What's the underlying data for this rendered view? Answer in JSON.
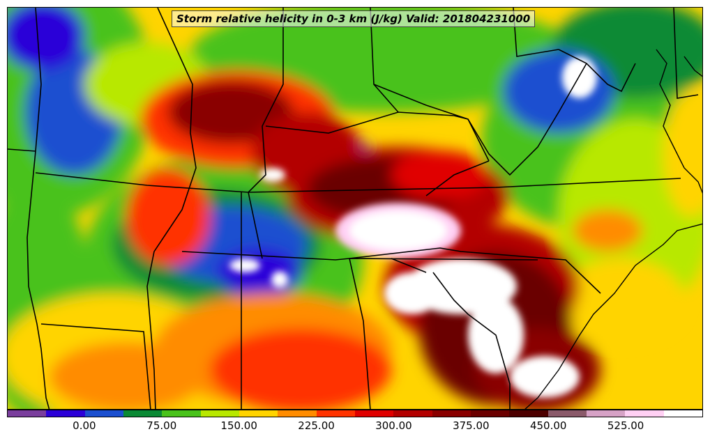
{
  "title": "Storm relative helicity in 0-3 km (J/kg) Valid: 201804231000",
  "legend": {
    "colors": [
      "#7a3e9d",
      "#2b00d8",
      "#1b4fd0",
      "#0a8a35",
      "#49c21b",
      "#b8e800",
      "#ffd400",
      "#ff8c00",
      "#ff3300",
      "#e00000",
      "#b30000",
      "#8a0000",
      "#6b0000",
      "#4d0000",
      "#8a5a6a",
      "#d6a2c6",
      "#ffd0f4",
      "#ffffff"
    ],
    "labels": [
      "0.00",
      "75.00",
      "150.00",
      "225.00",
      "300.00",
      "375.00",
      "450.00",
      "525.00"
    ]
  },
  "icons": {
    "map": "srh-contour-map"
  }
}
